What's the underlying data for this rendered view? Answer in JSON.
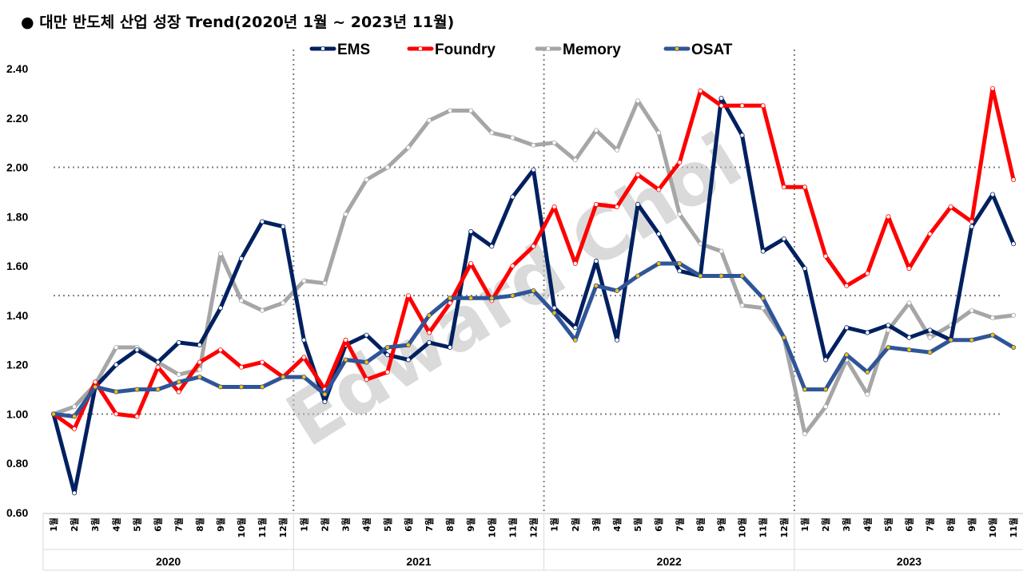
{
  "title": "● 대만 반도체 산업 성장 Trend(2020년 1월 ~ 2023년 11월)",
  "watermark": "Edward Choi",
  "chart_data": {
    "type": "line",
    "title": "대만 반도체 산업 성장 Trend(2020년 1월 ~ 2023년 11월)",
    "ylim": [
      0.6,
      2.4
    ],
    "yticks": [
      "0.60",
      "0.80",
      "1.00",
      "1.20",
      "1.40",
      "1.60",
      "1.80",
      "2.00",
      "2.20",
      "2.40"
    ],
    "reference_lines": [
      1.0,
      1.48,
      2.0
    ],
    "legend_position": "top",
    "years": [
      {
        "label": "2020",
        "months": [
          "1월",
          "2월",
          "3월",
          "4월",
          "5월",
          "6월",
          "7월",
          "8월",
          "9월",
          "10월",
          "11월",
          "12월"
        ]
      },
      {
        "label": "2021",
        "months": [
          "1월",
          "2월",
          "3월",
          "4월",
          "5월",
          "6월",
          "7월",
          "8월",
          "9월",
          "10월",
          "11월",
          "12월"
        ]
      },
      {
        "label": "2022",
        "months": [
          "1월",
          "2월",
          "3월",
          "4월",
          "5월",
          "6월",
          "7월",
          "8월",
          "9월",
          "10월",
          "11월",
          "12월"
        ]
      },
      {
        "label": "2023",
        "months": [
          "1월",
          "2월",
          "3월",
          "4월",
          "5월",
          "6월",
          "7월",
          "8월",
          "9월",
          "10월",
          "11월"
        ]
      }
    ],
    "series": [
      {
        "name": "Memory",
        "color": "#a6a6a6",
        "marker": "#ffffff",
        "values": [
          1.0,
          1.03,
          1.12,
          1.27,
          1.27,
          1.21,
          1.16,
          1.18,
          1.65,
          1.46,
          1.42,
          1.45,
          1.54,
          1.53,
          1.81,
          1.95,
          2.0,
          2.08,
          2.19,
          2.23,
          2.23,
          2.14,
          2.12,
          2.09,
          2.1,
          2.03,
          2.15,
          2.07,
          2.27,
          2.14,
          1.81,
          1.69,
          1.66,
          1.44,
          1.43,
          1.31,
          0.92,
          1.03,
          1.22,
          1.08,
          1.34,
          1.45,
          1.31,
          1.36,
          1.42,
          1.39,
          1.4
        ]
      },
      {
        "name": "EMS",
        "color": "#002060",
        "marker": "#ffffff",
        "values": [
          1.0,
          0.68,
          1.11,
          1.2,
          1.26,
          1.21,
          1.29,
          1.28,
          1.43,
          1.63,
          1.78,
          1.76,
          1.3,
          1.05,
          1.28,
          1.32,
          1.24,
          1.22,
          1.29,
          1.27,
          1.74,
          1.68,
          1.88,
          1.99,
          1.43,
          1.35,
          1.62,
          1.3,
          1.85,
          1.73,
          1.58,
          1.56,
          2.28,
          2.13,
          1.66,
          1.71,
          1.59,
          1.22,
          1.35,
          1.33,
          1.36,
          1.31,
          1.34,
          1.3,
          1.76,
          1.89,
          1.69
        ]
      },
      {
        "name": "Foundry",
        "color": "#ff0000",
        "marker": "#ffffff",
        "values": [
          1.0,
          0.94,
          1.13,
          1.0,
          0.99,
          1.19,
          1.09,
          1.21,
          1.26,
          1.19,
          1.21,
          1.15,
          1.23,
          1.1,
          1.3,
          1.14,
          1.17,
          1.48,
          1.33,
          1.45,
          1.61,
          1.46,
          1.6,
          1.68,
          1.84,
          1.61,
          1.85,
          1.84,
          1.97,
          1.91,
          2.02,
          2.31,
          2.25,
          2.25,
          2.25,
          1.92,
          1.92,
          1.64,
          1.52,
          1.57,
          1.8,
          1.59,
          1.73,
          1.84,
          1.78,
          2.32,
          1.95
        ]
      },
      {
        "name": "OSAT",
        "color": "#2f5597",
        "marker": "#ffc000",
        "values": [
          1.0,
          0.99,
          1.11,
          1.09,
          1.1,
          1.1,
          1.13,
          1.15,
          1.11,
          1.11,
          1.11,
          1.15,
          1.15,
          1.08,
          1.22,
          1.21,
          1.27,
          1.28,
          1.4,
          1.47,
          1.47,
          1.47,
          1.48,
          1.5,
          1.41,
          1.3,
          1.52,
          1.5,
          1.56,
          1.61,
          1.61,
          1.56,
          1.56,
          1.56,
          1.47,
          1.31,
          1.1,
          1.1,
          1.24,
          1.17,
          1.27,
          1.26,
          1.25,
          1.3,
          1.3,
          1.32,
          1.27
        ]
      }
    ],
    "legend": [
      {
        "name": "EMS",
        "color": "#002060",
        "marker": "#ffffff"
      },
      {
        "name": "Foundry",
        "color": "#ff0000",
        "marker": "#ffffff"
      },
      {
        "name": "Memory",
        "color": "#a6a6a6",
        "marker": "#ffffff"
      },
      {
        "name": "OSAT",
        "color": "#2f5597",
        "marker": "#ffc000"
      }
    ]
  }
}
